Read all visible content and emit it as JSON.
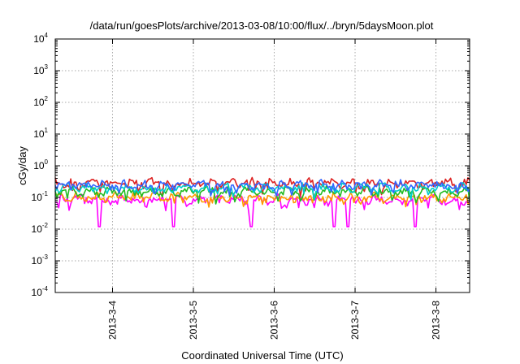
{
  "chart_data": {
    "type": "line",
    "title": "/data/run/goesPlots/archive/2013-03-08/10:00/flux/../bryn/5daysMoon.plot",
    "xlabel": "Coordinated Universal Time (UTC)",
    "ylabel": "cGy/day",
    "y_scale": "log",
    "ylim": [
      0.0001,
      10000
    ],
    "xlim": [
      "2013-03-03 07:00",
      "2013-03-08 10:00"
    ],
    "grid": true,
    "legend": "none",
    "y_ticks": [
      {
        "base": "10",
        "exp": "-4"
      },
      {
        "base": "10",
        "exp": "-3"
      },
      {
        "base": "10",
        "exp": "-2"
      },
      {
        "base": "10",
        "exp": "-1"
      },
      {
        "base": "10",
        "exp": "0"
      },
      {
        "base": "10",
        "exp": "1"
      },
      {
        "base": "10",
        "exp": "2"
      },
      {
        "base": "10",
        "exp": "3"
      },
      {
        "base": "10",
        "exp": "4"
      }
    ],
    "x_ticks": [
      {
        "label": "2013-3-4",
        "t": "2013-03-04 00:00"
      },
      {
        "label": "2013-3-5",
        "t": "2013-03-05 00:00"
      },
      {
        "label": "2013-3-6",
        "t": "2013-03-06 00:00"
      },
      {
        "label": "2013-3-7",
        "t": "2013-03-07 00:00"
      },
      {
        "label": "2013-3-8",
        "t": "2013-03-08 00:00"
      }
    ],
    "series": [
      {
        "color": "#ff00ff",
        "level": 0.085,
        "dip_to": 0.012,
        "dips": [
          "2013-03-03 20:00",
          "2013-03-04 18:00",
          "2013-03-05 17:00",
          "2013-03-06 18:00",
          "2013-03-06 22:00",
          "2013-03-07 18:00"
        ]
      },
      {
        "color": "#ff9900",
        "level": 0.1
      },
      {
        "color": "#dd2222",
        "level": 0.28
      },
      {
        "color": "#22bb22",
        "level": 0.15
      },
      {
        "color": "#00cccc",
        "level": 0.2
      },
      {
        "color": "#3366ff",
        "level": 0.24
      }
    ]
  }
}
